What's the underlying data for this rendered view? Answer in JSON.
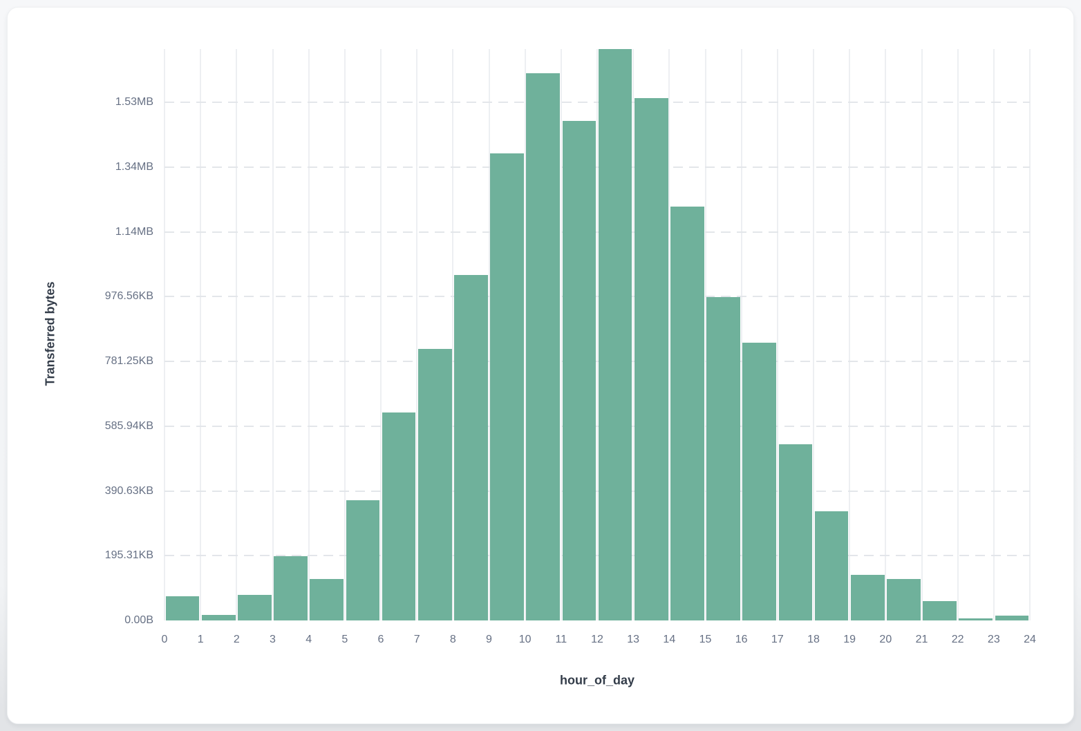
{
  "page": {
    "background_top": "#f6f7f9",
    "background_bottom": "#e2e4e7",
    "card_background": "#ffffff"
  },
  "chart_data": {
    "type": "bar",
    "subtype": "histogram",
    "title": "",
    "xlabel": "hour_of_day",
    "ylabel": "Transferred bytes",
    "bar_color": "#6fb19b",
    "grid": {
      "horizontal": "dashed",
      "vertical": "solid",
      "legend": "none"
    },
    "xlim": [
      0,
      24
    ],
    "ylim": [
      0,
      1765000
    ],
    "x_ticks": [
      "0",
      "1",
      "2",
      "3",
      "4",
      "5",
      "6",
      "7",
      "8",
      "9",
      "10",
      "11",
      "12",
      "13",
      "14",
      "15",
      "16",
      "17",
      "18",
      "19",
      "20",
      "21",
      "22",
      "23",
      "24"
    ],
    "y_ticks": [
      {
        "label": "0.00B",
        "value": 0
      },
      {
        "label": "195.31KB",
        "value": 200000
      },
      {
        "label": "390.63KB",
        "value": 400000
      },
      {
        "label": "585.94KB",
        "value": 600000
      },
      {
        "label": "781.25KB",
        "value": 800000
      },
      {
        "label": "976.56KB",
        "value": 1000000
      },
      {
        "label": "1.14MB",
        "value": 1200000
      },
      {
        "label": "1.34MB",
        "value": 1400000
      },
      {
        "label": "1.53MB",
        "value": 1600000
      }
    ],
    "categories": [
      0,
      1,
      2,
      3,
      4,
      5,
      6,
      7,
      8,
      9,
      10,
      11,
      12,
      13,
      14,
      15,
      16,
      17,
      18,
      19,
      20,
      21,
      22,
      23
    ],
    "values": [
      75000,
      17000,
      79000,
      198000,
      128000,
      372000,
      643000,
      839000,
      1068000,
      1442000,
      1690000,
      1542000,
      1764000,
      1613000,
      1279000,
      998000,
      859000,
      545000,
      337000,
      141000,
      128000,
      60000,
      6000,
      15000
    ],
    "values_unit": "bytes"
  }
}
